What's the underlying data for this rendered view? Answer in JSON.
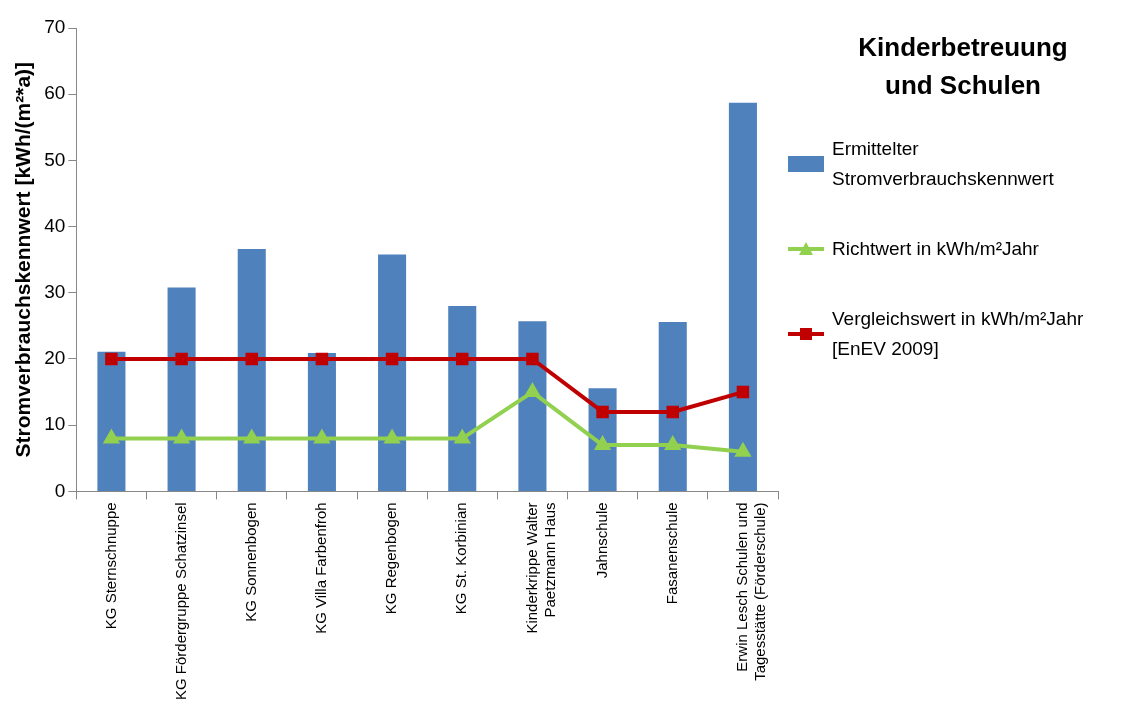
{
  "chart_data": {
    "type": "bar",
    "title": "Kinderbetreuung und Schulen",
    "ylabel": "Stromverbrauchskennwert [kWh/(m²*a)]",
    "categories": [
      "KG Sternschnuppe",
      "KG Fördergruppe Schatzinsel",
      "KG Sonnenbogen",
      "KG Villa Farbenfroh",
      "KG Regenbogen",
      "KG St. Korbinian",
      "Kinderkrippe Walter Paetzmann Haus",
      "Jahnschule",
      "Fasanenschule",
      "Erwin Lesch Schulen und Tagesstätte (Förderschule)"
    ],
    "series": [
      {
        "name": "Ermittelter Stromverbrauchskennwert",
        "color": "#4f81bd",
        "values": [
          21.1,
          30.8,
          36.6,
          20.9,
          35.8,
          28,
          25.7,
          15.6,
          25.6,
          58.7
        ]
      },
      {
        "name": "Richtwert in kWh/m²Jahr",
        "type": "line",
        "color": "#92d050",
        "marker": "triangle",
        "values": [
          8,
          8,
          8,
          8,
          8,
          8,
          15,
          7,
          7,
          6
        ]
      },
      {
        "name": "Vergleichswert in kWh/m²Jahr [EnEV 2009]",
        "type": "line",
        "color": "#c00000",
        "marker": "square",
        "values": [
          20,
          20,
          20,
          20,
          20,
          20,
          20,
          12,
          12,
          15
        ]
      }
    ],
    "ylim": [
      0,
      70
    ],
    "yticks": [
      0,
      10,
      20,
      30,
      40,
      50,
      60,
      70
    ],
    "grid": false,
    "legend": "right"
  }
}
